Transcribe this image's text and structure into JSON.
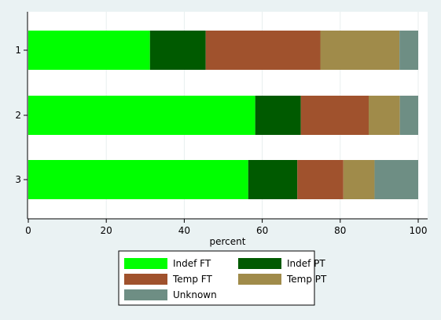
{
  "chart_data": {
    "type": "bar",
    "orientation": "horizontal",
    "stacked": true,
    "title": "",
    "xlabel": "percent",
    "ylabel": "",
    "xlim": [
      0,
      100
    ],
    "x_ticks": [
      0,
      20,
      40,
      60,
      80,
      100
    ],
    "grid": true,
    "legend_position": "bottom",
    "categories": [
      "1",
      "2",
      "3"
    ],
    "series": [
      {
        "name": "Indef FT",
        "color": "#00ff00",
        "values": [
          31.2,
          58.2,
          56.4
        ]
      },
      {
        "name": "Indef PT",
        "color": "#005a00",
        "values": [
          14.3,
          11.7,
          12.6
        ]
      },
      {
        "name": "Temp FT",
        "color": "#a0522d",
        "values": [
          29.4,
          17.4,
          11.8
        ]
      },
      {
        "name": "Temp PT",
        "color": "#a08b4a",
        "values": [
          20.3,
          8.0,
          8.0
        ]
      },
      {
        "name": "Unknown",
        "color": "#6e8e84",
        "values": [
          4.8,
          4.7,
          11.2
        ]
      }
    ]
  }
}
